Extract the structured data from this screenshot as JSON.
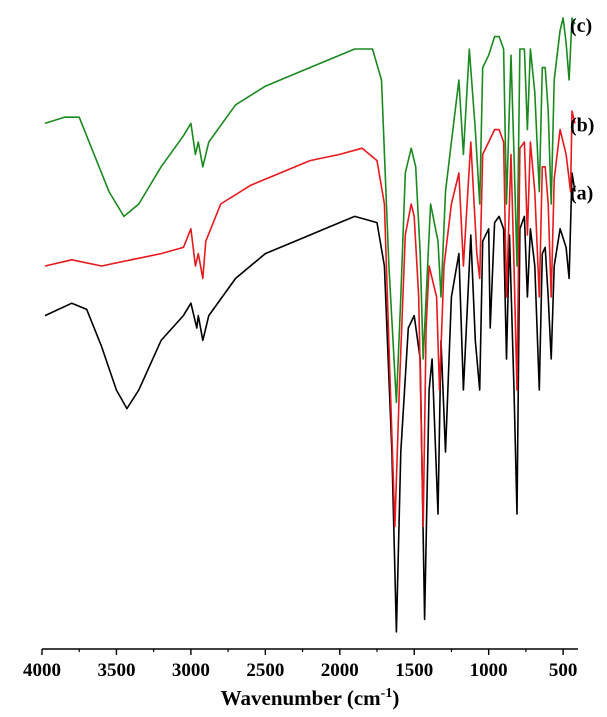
{
  "chart_data": {
    "type": "line",
    "xlabel": "Wavenumber (cm",
    "xlabel_sup": "-1",
    "xlabel_end": ")",
    "x_reversed": true,
    "xlim": [
      4000,
      400
    ],
    "xticks": [
      4000,
      3500,
      3000,
      2500,
      2000,
      1500,
      1000,
      500
    ],
    "ylim": [
      0,
      100
    ],
    "y_axis_shown": false,
    "grid": false,
    "series": [
      {
        "name": "(a)",
        "color": "#000000",
        "points": [
          [
            3980,
            52
          ],
          [
            3800,
            54
          ],
          [
            3700,
            53
          ],
          [
            3600,
            47
          ],
          [
            3500,
            40
          ],
          [
            3430,
            37
          ],
          [
            3350,
            40
          ],
          [
            3200,
            48
          ],
          [
            3050,
            52
          ],
          [
            3000,
            54
          ],
          [
            2960,
            50
          ],
          [
            2950,
            52
          ],
          [
            2920,
            48
          ],
          [
            2880,
            52
          ],
          [
            2700,
            58
          ],
          [
            2500,
            62
          ],
          [
            2300,
            64
          ],
          [
            2100,
            66
          ],
          [
            1900,
            68
          ],
          [
            1750,
            67
          ],
          [
            1700,
            60
          ],
          [
            1650,
            30
          ],
          [
            1620,
            1
          ],
          [
            1590,
            30
          ],
          [
            1540,
            50
          ],
          [
            1500,
            52
          ],
          [
            1460,
            45
          ],
          [
            1430,
            3
          ],
          [
            1400,
            40
          ],
          [
            1380,
            45
          ],
          [
            1340,
            20
          ],
          [
            1320,
            48
          ],
          [
            1290,
            30
          ],
          [
            1250,
            55
          ],
          [
            1200,
            62
          ],
          [
            1170,
            40
          ],
          [
            1120,
            65
          ],
          [
            1090,
            48
          ],
          [
            1060,
            40
          ],
          [
            1040,
            64
          ],
          [
            1000,
            66
          ],
          [
            990,
            50
          ],
          [
            960,
            67
          ],
          [
            930,
            68
          ],
          [
            900,
            66
          ],
          [
            880,
            45
          ],
          [
            860,
            65
          ],
          [
            830,
            40
          ],
          [
            810,
            20
          ],
          [
            790,
            66
          ],
          [
            760,
            68
          ],
          [
            740,
            55
          ],
          [
            720,
            66
          ],
          [
            690,
            60
          ],
          [
            660,
            40
          ],
          [
            640,
            62
          ],
          [
            620,
            63
          ],
          [
            600,
            55
          ],
          [
            580,
            45
          ],
          [
            560,
            60
          ],
          [
            520,
            66
          ],
          [
            480,
            63
          ],
          [
            460,
            58
          ],
          [
            440,
            75
          ],
          [
            420,
            72
          ]
        ]
      },
      {
        "name": "(b)",
        "color": "#e8191c",
        "points": [
          [
            3980,
            60
          ],
          [
            3800,
            61
          ],
          [
            3600,
            60
          ],
          [
            3400,
            61
          ],
          [
            3200,
            62
          ],
          [
            3050,
            63
          ],
          [
            3000,
            66
          ],
          [
            2970,
            60
          ],
          [
            2950,
            62
          ],
          [
            2920,
            58
          ],
          [
            2900,
            64
          ],
          [
            2800,
            70
          ],
          [
            2600,
            73
          ],
          [
            2400,
            75
          ],
          [
            2200,
            77
          ],
          [
            2000,
            78
          ],
          [
            1850,
            79
          ],
          [
            1750,
            77
          ],
          [
            1700,
            70
          ],
          [
            1660,
            40
          ],
          [
            1630,
            18
          ],
          [
            1600,
            40
          ],
          [
            1560,
            65
          ],
          [
            1520,
            70
          ],
          [
            1500,
            68
          ],
          [
            1470,
            55
          ],
          [
            1440,
            18
          ],
          [
            1420,
            50
          ],
          [
            1400,
            60
          ],
          [
            1350,
            55
          ],
          [
            1330,
            40
          ],
          [
            1300,
            60
          ],
          [
            1250,
            70
          ],
          [
            1200,
            75
          ],
          [
            1170,
            60
          ],
          [
            1120,
            80
          ],
          [
            1080,
            62
          ],
          [
            1060,
            58
          ],
          [
            1040,
            78
          ],
          [
            1000,
            80
          ],
          [
            960,
            82
          ],
          [
            930,
            82
          ],
          [
            900,
            80
          ],
          [
            880,
            55
          ],
          [
            850,
            78
          ],
          [
            830,
            60
          ],
          [
            810,
            40
          ],
          [
            790,
            79
          ],
          [
            760,
            80
          ],
          [
            740,
            65
          ],
          [
            720,
            80
          ],
          [
            690,
            72
          ],
          [
            660,
            55
          ],
          [
            640,
            76
          ],
          [
            620,
            76
          ],
          [
            600,
            70
          ],
          [
            580,
            55
          ],
          [
            560,
            74
          ],
          [
            520,
            82
          ],
          [
            480,
            78
          ],
          [
            450,
            72
          ],
          [
            440,
            85
          ],
          [
            420,
            83
          ]
        ]
      },
      {
        "name": "(c)",
        "color": "#1a8a1f",
        "points": [
          [
            3980,
            83
          ],
          [
            3850,
            84
          ],
          [
            3750,
            84
          ],
          [
            3650,
            78
          ],
          [
            3550,
            72
          ],
          [
            3450,
            68
          ],
          [
            3350,
            70
          ],
          [
            3200,
            76
          ],
          [
            3050,
            81
          ],
          [
            3000,
            83
          ],
          [
            2970,
            78
          ],
          [
            2950,
            80
          ],
          [
            2920,
            76
          ],
          [
            2880,
            80
          ],
          [
            2700,
            86
          ],
          [
            2500,
            89
          ],
          [
            2300,
            91
          ],
          [
            2100,
            93
          ],
          [
            1900,
            95
          ],
          [
            1780,
            95
          ],
          [
            1720,
            90
          ],
          [
            1670,
            60
          ],
          [
            1620,
            38
          ],
          [
            1590,
            55
          ],
          [
            1560,
            75
          ],
          [
            1520,
            79
          ],
          [
            1490,
            76
          ],
          [
            1460,
            62
          ],
          [
            1440,
            45
          ],
          [
            1410,
            60
          ],
          [
            1390,
            70
          ],
          [
            1340,
            64
          ],
          [
            1320,
            55
          ],
          [
            1290,
            72
          ],
          [
            1250,
            80
          ],
          [
            1200,
            90
          ],
          [
            1170,
            78
          ],
          [
            1130,
            95
          ],
          [
            1090,
            82
          ],
          [
            1060,
            70
          ],
          [
            1040,
            92
          ],
          [
            1000,
            94
          ],
          [
            960,
            97
          ],
          [
            930,
            97
          ],
          [
            900,
            95
          ],
          [
            880,
            70
          ],
          [
            850,
            94
          ],
          [
            830,
            78
          ],
          [
            810,
            60
          ],
          [
            790,
            95
          ],
          [
            760,
            95
          ],
          [
            740,
            82
          ],
          [
            720,
            95
          ],
          [
            690,
            88
          ],
          [
            660,
            72
          ],
          [
            640,
            92
          ],
          [
            620,
            92
          ],
          [
            600,
            85
          ],
          [
            580,
            70
          ],
          [
            560,
            90
          ],
          [
            520,
            98
          ],
          [
            500,
            100
          ],
          [
            480,
            96
          ],
          [
            460,
            90
          ],
          [
            440,
            100
          ],
          [
            420,
            99
          ]
        ]
      }
    ]
  }
}
